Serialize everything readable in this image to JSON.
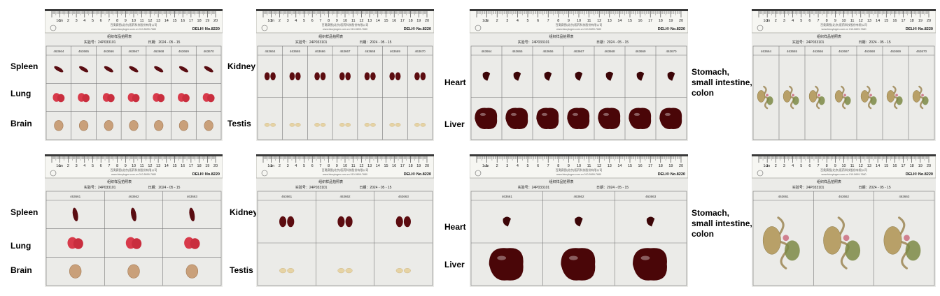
{
  "labels": {
    "row1": {
      "spleen": "Spleen",
      "lung": "Lung",
      "brain": "Brain",
      "kidney": "Kidney",
      "testis": "Testis",
      "heart": "Heart",
      "liver": "Liver",
      "gi": "Stomach,\nsmall intestine,\ncolon"
    },
    "row2": {
      "spleen": "Spleen",
      "lung": "Lung",
      "brain": "Brain",
      "kidney": "Kidney",
      "testis": "Testis",
      "heart": "Heart",
      "liver": "Liver",
      "gi": "Stomach,\nsmall intestine,\ncolon"
    }
  },
  "sheet": {
    "title": "组织样品拍照表",
    "exp_label": "实验号：",
    "exp_value": "24P033101",
    "date_label": "日期：",
    "date_value": "2024 - 05 - 15",
    "ruler_brand": "DELI® No.8220",
    "ruler_unit": "1cm",
    "company_line1": "百奥赛图(北京)医药科技股份有限公司",
    "company_line2": "www.biocytogen.com.cn   010-5699-7680"
  },
  "animals_row1": [
    "463664",
    "463665",
    "463666",
    "463667",
    "463668",
    "463669",
    "463670"
  ],
  "animals_row2": [
    "463661",
    "463662",
    "463663"
  ],
  "colors": {
    "spleen": "#5a0d12",
    "lung": "#d83a4a",
    "brain": "#c9a07a",
    "kidney": "#5c0c10",
    "testis": "#e6d3a4",
    "heart": "#3c0507",
    "liver": "#4a0608",
    "gi": "#b8a068"
  }
}
